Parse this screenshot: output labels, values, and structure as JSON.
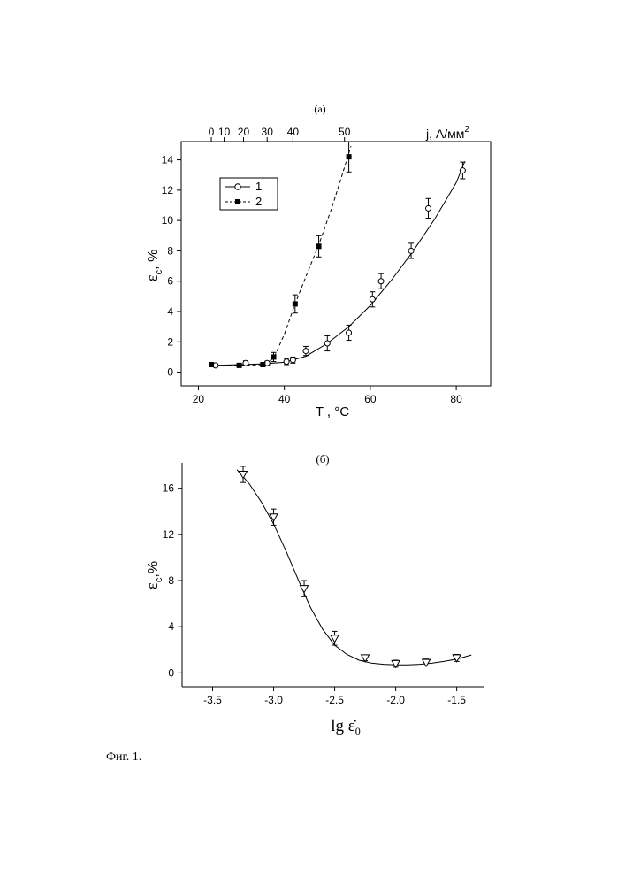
{
  "figure_caption": "Фиг. 1.",
  "chart_data": [
    {
      "panel_label": "(а)",
      "type": "scatter",
      "xlabel": "T , °C",
      "ylabel_main": "ε",
      "ylabel_sub": "c",
      "ylabel_unit": ", %",
      "x2label": "j, А/мм",
      "x2label_sup": "2",
      "xlim": [
        16,
        88
      ],
      "ylim": [
        -0.9,
        15.2
      ],
      "xticks": [
        20,
        40,
        60,
        80
      ],
      "yticks": [
        0,
        2,
        4,
        6,
        8,
        10,
        12,
        14
      ],
      "x2ticks": [
        {
          "label": "0",
          "at": 23
        },
        {
          "label": "10",
          "at": 26
        },
        {
          "label": "20",
          "at": 30.5
        },
        {
          "label": "30",
          "at": 36
        },
        {
          "label": "40",
          "at": 42
        },
        {
          "label": "50",
          "at": 54
        }
      ],
      "legend": {
        "position": "top-left",
        "entries": [
          "1",
          "2"
        ]
      },
      "grid": false,
      "series": [
        {
          "name": "1",
          "marker": "open-circle",
          "line": "solid",
          "points": [
            {
              "x": 24,
              "y": 0.45,
              "err": 0.1
            },
            {
              "x": 31,
              "y": 0.6,
              "err": 0.15
            },
            {
              "x": 36,
              "y": 0.6,
              "err": 0.12
            },
            {
              "x": 40.5,
              "y": 0.7,
              "err": 0.2
            },
            {
              "x": 42,
              "y": 0.8,
              "err": 0.2
            },
            {
              "x": 45,
              "y": 1.4,
              "err": 0.3
            },
            {
              "x": 50,
              "y": 1.9,
              "err": 0.5
            },
            {
              "x": 55,
              "y": 2.6,
              "err": 0.5
            },
            {
              "x": 60.5,
              "y": 4.8,
              "err": 0.5
            },
            {
              "x": 62.5,
              "y": 6.0,
              "err": 0.5
            },
            {
              "x": 69.5,
              "y": 8.0,
              "err": 0.5
            },
            {
              "x": 73.5,
              "y": 10.8,
              "err": 0.65
            },
            {
              "x": 81.5,
              "y": 13.3,
              "err": 0.55
            }
          ],
          "fit_curve": [
            [
              22.5,
              0.45
            ],
            [
              30,
              0.5
            ],
            [
              35,
              0.55
            ],
            [
              40,
              0.65
            ],
            [
              45,
              1.05
            ],
            [
              50,
              1.9
            ],
            [
              55,
              3.0
            ],
            [
              60,
              4.4
            ],
            [
              65,
              6.1
            ],
            [
              70,
              8.0
            ],
            [
              75,
              10.1
            ],
            [
              80,
              12.5
            ],
            [
              82,
              13.9
            ]
          ]
        },
        {
          "name": "2",
          "marker": "filled-square",
          "line": "dashed",
          "points": [
            {
              "x": 23,
              "y": 0.5,
              "err": 0
            },
            {
              "x": 29.5,
              "y": 0.45,
              "err": 0
            },
            {
              "x": 35,
              "y": 0.5,
              "err": 0
            },
            {
              "x": 37.5,
              "y": 1.0,
              "err": 0.3
            },
            {
              "x": 42.5,
              "y": 4.5,
              "err": 0.6
            },
            {
              "x": 48,
              "y": 8.3,
              "err": 0.7
            },
            {
              "x": 55,
              "y": 14.2,
              "err": 1.0
            }
          ],
          "fit_curve": [
            [
              22.5,
              0.45
            ],
            [
              30,
              0.45
            ],
            [
              35,
              0.5
            ],
            [
              37.5,
              0.9
            ],
            [
              40,
              2.5
            ],
            [
              42.5,
              4.5
            ],
            [
              45,
              6.3
            ],
            [
              48,
              8.4
            ],
            [
              51,
              10.8
            ],
            [
              53,
              12.6
            ],
            [
              55.5,
              14.9
            ]
          ]
        }
      ]
    },
    {
      "panel_label": "(б)",
      "type": "scatter",
      "xlabel_text": "lg ",
      "xlabel_symbol": "ε̇",
      "xlabel_sub": "0",
      "ylabel_main": "ε",
      "ylabel_sub": "c",
      "ylabel_unit": ",%",
      "xlim": [
        -3.75,
        -1.28
      ],
      "ylim": [
        -1.2,
        18.2
      ],
      "xticks": [
        -3.5,
        -3.0,
        -2.5,
        -2.0,
        -1.5
      ],
      "xtick_labels": [
        "-3.5",
        "-3.0",
        "-2.5",
        "-2.0",
        "-1.5"
      ],
      "yticks": [
        0,
        4,
        8,
        12,
        16
      ],
      "grid": false,
      "series": [
        {
          "marker": "open-triangle-down",
          "line": "solid",
          "points": [
            {
              "x": -3.25,
              "y": 17.2,
              "err": 0.7
            },
            {
              "x": -3.0,
              "y": 13.5,
              "err": 0.7
            },
            {
              "x": -2.75,
              "y": 7.3,
              "err": 0.7
            },
            {
              "x": -2.5,
              "y": 3.0,
              "err": 0.6
            },
            {
              "x": -2.25,
              "y": 1.3,
              "err": 0.25
            },
            {
              "x": -2.0,
              "y": 0.8,
              "err": 0.3
            },
            {
              "x": -1.75,
              "y": 0.9,
              "err": 0.3
            },
            {
              "x": -1.5,
              "y": 1.3,
              "err": 0.3
            }
          ],
          "fit_curve": [
            [
              -3.3,
              17.6
            ],
            [
              -3.2,
              16.4
            ],
            [
              -3.1,
              14.8
            ],
            [
              -3.0,
              12.9
            ],
            [
              -2.9,
              10.6
            ],
            [
              -2.8,
              8.1
            ],
            [
              -2.7,
              5.7
            ],
            [
              -2.6,
              3.8
            ],
            [
              -2.5,
              2.4
            ],
            [
              -2.4,
              1.6
            ],
            [
              -2.3,
              1.1
            ],
            [
              -2.2,
              0.85
            ],
            [
              -2.1,
              0.75
            ],
            [
              -2.0,
              0.7
            ],
            [
              -1.9,
              0.7
            ],
            [
              -1.8,
              0.75
            ],
            [
              -1.7,
              0.85
            ],
            [
              -1.6,
              1.0
            ],
            [
              -1.5,
              1.2
            ],
            [
              -1.38,
              1.55
            ]
          ]
        }
      ]
    }
  ]
}
